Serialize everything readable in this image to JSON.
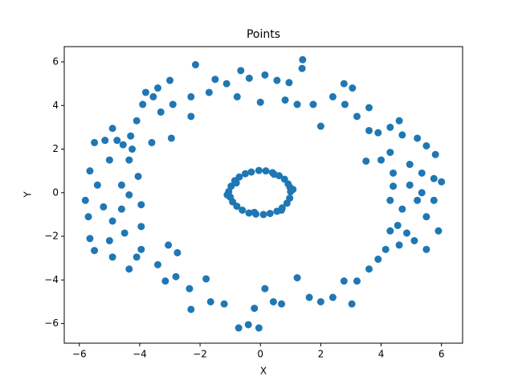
{
  "chart_data": {
    "type": "scatter",
    "title": "Points",
    "xlabel": "X",
    "ylabel": "Y",
    "color": "#1f77b4",
    "xlim": [
      -6.5,
      6.7
    ],
    "ylim": [
      -6.9,
      6.7
    ],
    "xticks": [
      {
        "value": -6,
        "label": "−6"
      },
      {
        "value": -4,
        "label": "−4"
      },
      {
        "value": -2,
        "label": "−2"
      },
      0,
      2,
      4,
      6
    ],
    "yticks": [
      {
        "value": -6,
        "label": "−6"
      },
      {
        "value": -4,
        "label": "−4"
      },
      {
        "value": -2,
        "label": "−2"
      },
      0,
      2,
      4,
      6
    ],
    "x": [
      -2.15,
      1.4,
      1.38,
      0.15,
      -0.65,
      -1.5,
      -3.0,
      -3.4,
      -3.8,
      -3.9,
      -4.1,
      -4.3,
      -4.75,
      -5.15,
      -5.5,
      -4.9,
      -4.55,
      -5.0,
      -5.65,
      -5.4,
      -5.8,
      -5.7,
      -5.65,
      -5.5,
      -5.0,
      -4.9,
      -4.35,
      -4.1,
      -3.95,
      -3.4,
      -3.05,
      -2.75,
      -3.15,
      -2.8,
      -2.35,
      -2.3,
      -1.8,
      -1.65,
      -1.2,
      -0.72,
      -0.4,
      -0.05,
      -0.2,
      0.15,
      0.43,
      0.7,
      1.22,
      1.62,
      2.0,
      2.4,
      2.77,
      3.03,
      3.2,
      3.6,
      3.9,
      4.15,
      4.6,
      5.1,
      5.5,
      5.9,
      5.5,
      5.2,
      6.0,
      5.75,
      5.35,
      4.95,
      5.2,
      5.8,
      5.5,
      4.7,
      4.6,
      4.3,
      3.9,
      3.6,
      3.6,
      3.2,
      2.8,
      3.05,
      2.77,
      2.4,
      2.0,
      1.75,
      1.22,
      0.82,
      0.95,
      0.55,
      0,
      -0.37,
      -0.77,
      -1.12,
      -1.7,
      -2.3,
      -2.3,
      -2.9,
      -3.3,
      -3.55,
      -2.95,
      -3.6,
      -4.25,
      -4.35,
      -4.05,
      -4.6,
      -4.35,
      -3.95,
      -4.6,
      -4.9,
      -3.95,
      -4.5,
      -5.2,
      4.4,
      4.3,
      4.7,
      4.55,
      4.3,
      4.85,
      5.35,
      4.95,
      4.4,
      4.3,
      4.0,
      3.5,
      5.75,
      1.0,
      0.98,
      0.92,
      0.8,
      0.62,
      0.4,
      0.18,
      -0.05,
      -0.3,
      -0.5,
      -0.7,
      -0.85,
      -0.97,
      -1.05,
      -1.0,
      -0.92,
      -0.78,
      -0.6,
      -0.38,
      -0.15,
      0.1,
      0.32,
      0.55,
      0.72,
      0.88,
      0.97,
      1.08,
      -1.1,
      0.45,
      -0.2,
      0.7,
      -0.8
    ],
    "y": [
      5.87,
      6.1,
      5.7,
      5.4,
      5.6,
      5.2,
      5.15,
      4.8,
      4.6,
      4.05,
      3.3,
      2.6,
      2.4,
      2.4,
      2.3,
      2.95,
      2.2,
      1.5,
      1.0,
      0.35,
      -0.35,
      -1.1,
      -2.1,
      -2.65,
      -2.2,
      -2.95,
      -3.5,
      -2.95,
      -2.6,
      -3.3,
      -2.4,
      -2.75,
      -4.05,
      -3.85,
      -4.4,
      -5.35,
      -3.95,
      -5.0,
      -5.1,
      -6.2,
      -6.05,
      -6.2,
      -5.3,
      -4.4,
      -5.0,
      -5.1,
      -3.9,
      -4.8,
      -5.0,
      -4.8,
      -4.05,
      -5.1,
      -4.05,
      -3.5,
      -3.05,
      -2.6,
      -2.4,
      -2.2,
      -2.6,
      -1.75,
      -1.1,
      -0.35,
      0.5,
      0.65,
      0.9,
      1.3,
      2.5,
      1.75,
      2.15,
      2.65,
      3.3,
      3.0,
      2.75,
      2.85,
      3.9,
      3.5,
      4.05,
      4.8,
      5.0,
      4.4,
      3.05,
      4.05,
      4.05,
      4.25,
      5.05,
      5.15,
      4.15,
      5.25,
      4.4,
      5.0,
      4.6,
      4.4,
      3.5,
      4.05,
      3.7,
      4.4,
      2.5,
      2.3,
      2.0,
      1.5,
      0.75,
      0.35,
      -0.1,
      -0.55,
      -0.75,
      -1.3,
      -1.55,
      -1.85,
      -0.65,
      0.3,
      -0.35,
      -0.75,
      -1.5,
      -1.75,
      -1.85,
      0,
      0.35,
      0.9,
      1.85,
      1.5,
      1.45,
      -0.35,
      0.05,
      0.25,
      0.4,
      0.62,
      0.78,
      0.92,
      1.0,
      1.02,
      0.95,
      0.87,
      0.72,
      0.55,
      0.3,
      0.05,
      -0.2,
      -0.42,
      -0.62,
      -0.8,
      -0.93,
      -0.98,
      -1.0,
      -0.95,
      -0.85,
      -0.7,
      -0.48,
      -0.25,
      0.15,
      -0.1,
      0.85,
      -0.9,
      -0.8,
      0.45
    ]
  }
}
